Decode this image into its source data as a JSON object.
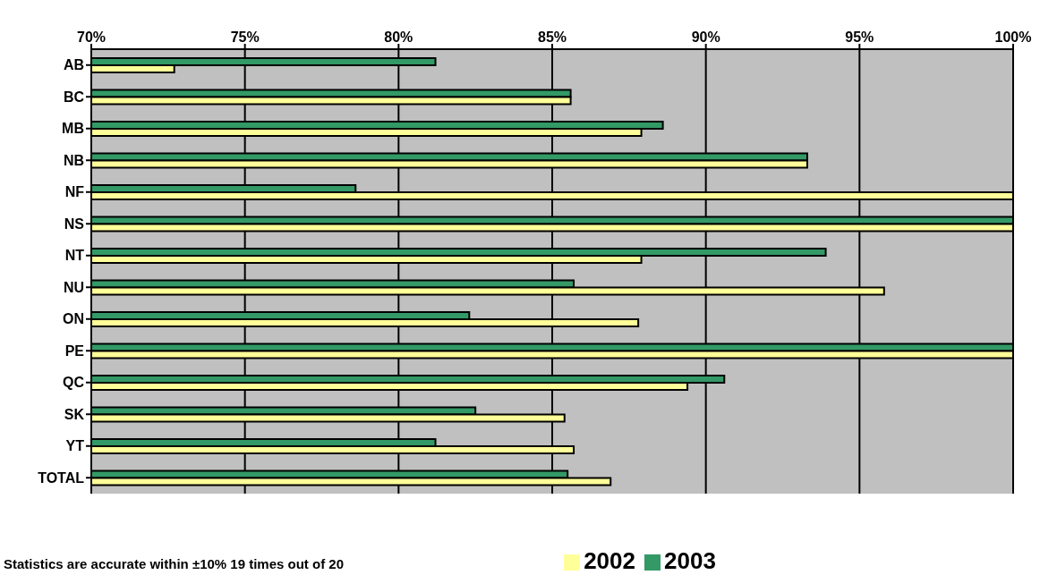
{
  "chart_data": {
    "type": "bar",
    "orientation": "horizontal",
    "categories": [
      "AB",
      "BC",
      "MB",
      "NB",
      "NF",
      "NS",
      "NT",
      "NU",
      "ON",
      "PE",
      "QC",
      "SK",
      "YT",
      "TOTAL"
    ],
    "series": [
      {
        "name": "2003",
        "color": "#339966",
        "values": [
          81.2,
          85.6,
          88.6,
          93.3,
          78.6,
          100,
          93.9,
          85.7,
          82.3,
          100,
          90.6,
          82.5,
          81.2,
          85.5
        ]
      },
      {
        "name": "2002",
        "color": "#ffff99",
        "values": [
          72.7,
          85.6,
          87.9,
          93.3,
          100,
          100,
          87.9,
          95.8,
          87.8,
          100,
          89.4,
          85.4,
          85.7,
          86.9
        ]
      }
    ],
    "xlim": [
      70,
      100
    ],
    "xticks": [
      {
        "value": 70,
        "label": "70%"
      },
      {
        "value": 75,
        "label": "75%"
      },
      {
        "value": 80,
        "label": "80%"
      },
      {
        "value": 85,
        "label": "85%"
      },
      {
        "value": 90,
        "label": "90%"
      },
      {
        "value": 95,
        "label": "95%"
      },
      {
        "value": 100,
        "label": "100%"
      }
    ],
    "grid": "x",
    "legend": "bottom",
    "annotations": [
      "Statistics are accurate within ±10% 19 times out of 20"
    ]
  }
}
